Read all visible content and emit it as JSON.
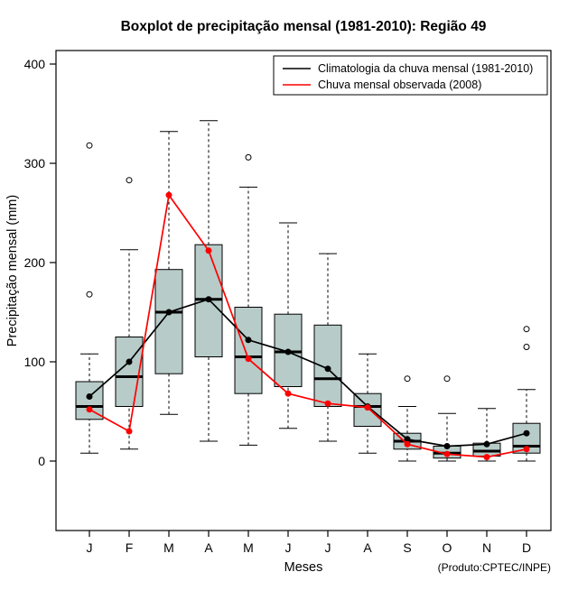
{
  "title": "Boxplot de precipitação mensal (1981-2010): Região 49",
  "xlabel": "Meses",
  "ylabel": "Precipitação mensal (mm)",
  "product_credit": "(Produto:CPTEC/INPE)",
  "legend": [
    {
      "label": "Climatologia da chuva mensal (1981-2010)",
      "color": "#000000"
    },
    {
      "label": "Chuva mensal observada (2008)",
      "color": "#ff0000"
    }
  ],
  "chart_data": {
    "type": "boxplot",
    "title": "Boxplot de precipitação mensal (1981-2010): Região 49",
    "xlabel": "Meses",
    "ylabel": "Precipitação mensal (mm)",
    "categories": [
      "J",
      "F",
      "M",
      "A",
      "M",
      "J",
      "J",
      "A",
      "S",
      "O",
      "N",
      "D"
    ],
    "ylim": [
      0,
      400
    ],
    "yticks": [
      0,
      100,
      200,
      300,
      400
    ],
    "box_fill": "#b7cbc8",
    "box_stroke": "#000000",
    "legend_position": "top-right",
    "grid": false,
    "boxes": [
      {
        "low": 8,
        "q1": 42,
        "median": 55,
        "q3": 80,
        "high": 108,
        "outliers": [
          168,
          318
        ]
      },
      {
        "low": 12,
        "q1": 55,
        "median": 85,
        "q3": 125,
        "high": 213,
        "outliers": [
          283
        ]
      },
      {
        "low": 47,
        "q1": 88,
        "median": 150,
        "q3": 193,
        "high": 332,
        "outliers": []
      },
      {
        "low": 20,
        "q1": 105,
        "median": 163,
        "q3": 218,
        "high": 343,
        "outliers": []
      },
      {
        "low": 16,
        "q1": 68,
        "median": 105,
        "q3": 155,
        "high": 276,
        "outliers": [
          306
        ]
      },
      {
        "low": 33,
        "q1": 75,
        "median": 110,
        "q3": 148,
        "high": 240,
        "outliers": []
      },
      {
        "low": 20,
        "q1": 55,
        "median": 83,
        "q3": 137,
        "high": 209,
        "outliers": []
      },
      {
        "low": 8,
        "q1": 35,
        "median": 55,
        "q3": 68,
        "high": 108,
        "outliers": []
      },
      {
        "low": 0,
        "q1": 12,
        "median": 20,
        "q3": 28,
        "high": 55,
        "outliers": [
          83
        ]
      },
      {
        "low": 0,
        "q1": 3,
        "median": 8,
        "q3": 15,
        "high": 48,
        "outliers": [
          83
        ]
      },
      {
        "low": 0,
        "q1": 5,
        "median": 10,
        "q3": 18,
        "high": 53,
        "outliers": []
      },
      {
        "low": 0,
        "q1": 8,
        "median": 15,
        "q3": 38,
        "high": 72,
        "outliers": [
          115,
          133
        ]
      }
    ],
    "series": [
      {
        "name": "Climatologia da chuva mensal (1981-2010)",
        "color": "#000000",
        "values": [
          65,
          100,
          150,
          163,
          122,
          110,
          93,
          55,
          22,
          15,
          17,
          28
        ]
      },
      {
        "name": "Chuva mensal observada (2008)",
        "color": "#ff0000",
        "values": [
          52,
          30,
          268,
          212,
          103,
          68,
          58,
          54,
          17,
          7,
          4,
          12
        ]
      }
    ]
  }
}
